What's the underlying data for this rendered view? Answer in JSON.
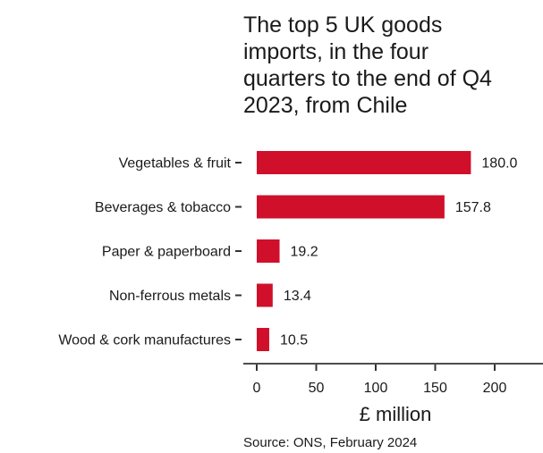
{
  "chart_data": {
    "type": "bar",
    "orientation": "horizontal",
    "title_lines": [
      "The top 5 UK goods",
      "imports, in the four",
      "quarters to the end of Q4",
      "2023, from Chile"
    ],
    "categories": [
      "Vegetables & fruit",
      "Beverages & tobacco",
      "Paper & paperboard",
      "Non-ferrous metals",
      "Wood & cork manufactures"
    ],
    "values": [
      180.0,
      157.8,
      19.2,
      13.4,
      10.5
    ],
    "value_labels": [
      "180.0",
      "157.8",
      "19.2",
      "13.4",
      "10.5"
    ],
    "xlabel": "£ million",
    "xticks": [
      "0",
      "50",
      "100",
      "150",
      "200"
    ],
    "xlim": [
      0,
      200
    ],
    "bar_color": "#d0102a",
    "grid": false,
    "source": "Source: ONS, February 2024"
  }
}
